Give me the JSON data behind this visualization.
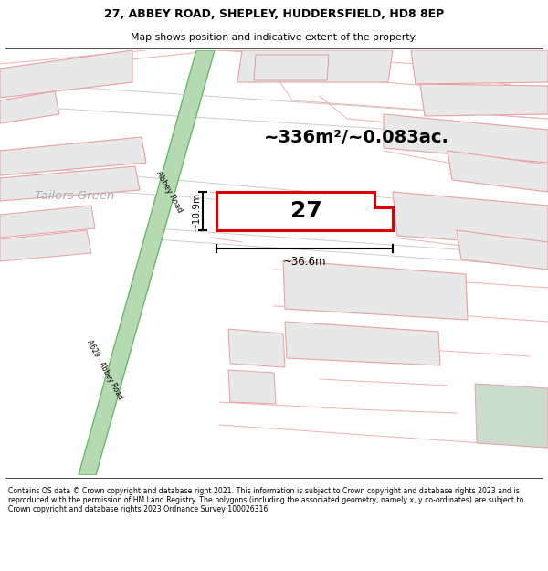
{
  "title_line1": "27, ABBEY ROAD, SHEPLEY, HUDDERSFIELD, HD8 8EP",
  "title_line2": "Map shows position and indicative extent of the property.",
  "footer_text": "Contains OS data © Crown copyright and database right 2021. This information is subject to Crown copyright and database rights 2023 and is reproduced with the permission of HM Land Registry. The polygons (including the associated geometry, namely x, y co-ordinates) are subject to Crown copyright and database rights 2023 Ordnance Survey 100026316.",
  "area_label": "~336m²/~0.083ac.",
  "plot_number": "27",
  "width_label": "~36.6m",
  "height_label": "~18.9m",
  "road_label_top": "Abbey Road",
  "road_label_bottom": "A629 - Abbey Road",
  "location_label": "Tailors Green",
  "road_color": "#b5d9b0",
  "road_edge_color": "#6ab86a",
  "plot_outline": "#dd0000",
  "building_fill": "#e8e8e8",
  "building_outline": "#e8a0a0",
  "gray_fill": "#e0e0e0",
  "green_area_fill": "#ccdccc",
  "road_line_color": "#c8c8c8",
  "pink_line_color": "#f0b0b0",
  "text_gray": "#aaaaaa",
  "map_bg": "#ffffff"
}
